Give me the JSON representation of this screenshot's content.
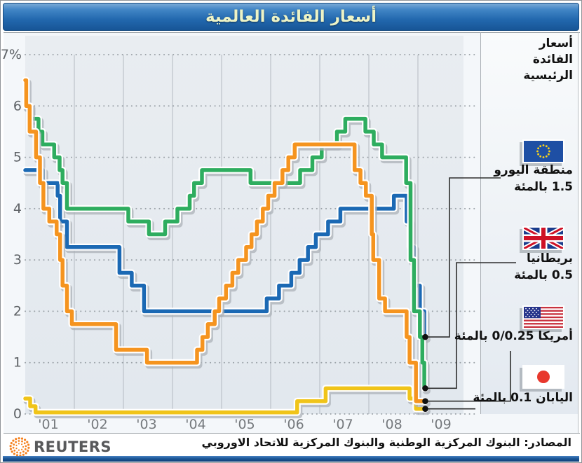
{
  "title": "أسعار الفائدة العالمية",
  "panel_heading": {
    "line1": "أسعار",
    "line2": "الفائدة",
    "line3": "الرئيسية"
  },
  "legend": {
    "euro": {
      "name": "منطقة اليورو",
      "rate": "1.5 بالمئة"
    },
    "britain": {
      "name": "بريطانيا",
      "rate": "0.5 بالمئة"
    },
    "america": {
      "name": "أمريكا 0/0.25 بالمئة"
    },
    "japan": {
      "name": "اليابان 0.1 بالمئة"
    }
  },
  "footer": {
    "brand": "REUTERS",
    "source": "المصادر: البنوك المركزية الوطنية والبنوك المركزية للاتحاد الاوروبي"
  },
  "colors": {
    "euro": "#1b69b4",
    "britain": "#2ead5f",
    "america": "#f5941f",
    "japan": "#f0c419",
    "title_bg": "#2268ae",
    "title_text": "#edf3c6",
    "reuters_orange": "#f58220",
    "plot_bg": "#e6ebf0",
    "grid": "#8f969c",
    "dot": "#111111"
  },
  "chart_data": {
    "type": "line",
    "subtype": "step",
    "title": "أسعار الفائدة العالمية",
    "ylabel": "%",
    "y_ticks": [
      "7%",
      "6",
      "5",
      "4",
      "3",
      "2",
      "1",
      "0"
    ],
    "x_ticks": [
      "'01",
      "'02",
      "'03",
      "'04",
      "'05",
      "'06",
      "'07",
      "'08",
      "'09"
    ],
    "x_range": [
      2001.0,
      2009.15
    ],
    "y_range": [
      0,
      7
    ],
    "grid": "horizontal-dotted, vertical-solid",
    "legend_position": "right",
    "series": [
      {
        "id": "japan",
        "label_ar": "اليابان",
        "color": "#f0c419",
        "end_value": 0.1,
        "points": [
          [
            2001.0,
            0.3
          ],
          [
            2001.1,
            0.15
          ],
          [
            2001.21,
            0.03
          ],
          [
            2006.54,
            0.25
          ],
          [
            2007.12,
            0.5
          ],
          [
            2008.83,
            0.3
          ],
          [
            2008.96,
            0.1
          ]
        ]
      },
      {
        "id": "euro",
        "label_ar": "منطقة اليورو",
        "color": "#1b69b4",
        "end_value": 1.5,
        "points": [
          [
            2001.0,
            4.75
          ],
          [
            2001.36,
            4.5
          ],
          [
            2001.66,
            4.25
          ],
          [
            2001.71,
            3.75
          ],
          [
            2001.85,
            3.25
          ],
          [
            2002.92,
            2.75
          ],
          [
            2003.17,
            2.5
          ],
          [
            2003.42,
            2.0
          ],
          [
            2005.92,
            2.25
          ],
          [
            2006.17,
            2.5
          ],
          [
            2006.42,
            2.75
          ],
          [
            2006.59,
            3.0
          ],
          [
            2006.76,
            3.25
          ],
          [
            2006.92,
            3.5
          ],
          [
            2007.17,
            3.75
          ],
          [
            2007.42,
            4.0
          ],
          [
            2008.51,
            4.25
          ],
          [
            2008.77,
            3.75
          ],
          [
            2008.84,
            3.25
          ],
          [
            2008.92,
            2.5
          ],
          [
            2009.04,
            2.0
          ],
          [
            2009.13,
            1.5
          ]
        ]
      },
      {
        "id": "britain",
        "label_ar": "بريطانيا",
        "color": "#2ead5f",
        "end_value": 0.5,
        "points": [
          [
            2001.0,
            6.0
          ],
          [
            2001.1,
            5.75
          ],
          [
            2001.27,
            5.5
          ],
          [
            2001.35,
            5.25
          ],
          [
            2001.59,
            5.0
          ],
          [
            2001.7,
            4.75
          ],
          [
            2001.76,
            4.5
          ],
          [
            2001.85,
            4.0
          ],
          [
            2003.1,
            3.75
          ],
          [
            2003.52,
            3.5
          ],
          [
            2003.85,
            3.75
          ],
          [
            2004.1,
            4.0
          ],
          [
            2004.35,
            4.25
          ],
          [
            2004.44,
            4.5
          ],
          [
            2004.6,
            4.75
          ],
          [
            2005.59,
            4.5
          ],
          [
            2006.6,
            4.75
          ],
          [
            2006.85,
            5.0
          ],
          [
            2007.04,
            5.25
          ],
          [
            2007.35,
            5.5
          ],
          [
            2007.52,
            5.75
          ],
          [
            2007.93,
            5.5
          ],
          [
            2008.1,
            5.25
          ],
          [
            2008.27,
            5.0
          ],
          [
            2008.76,
            4.5
          ],
          [
            2008.85,
            3.0
          ],
          [
            2008.92,
            2.0
          ],
          [
            2009.04,
            1.5
          ],
          [
            2009.09,
            1.0
          ],
          [
            2009.13,
            0.5
          ]
        ]
      },
      {
        "id": "america",
        "label_ar": "أمريكا",
        "color": "#f5941f",
        "end_value": 0.25,
        "points": [
          [
            2001.0,
            6.5
          ],
          [
            2001.02,
            6.0
          ],
          [
            2001.09,
            5.5
          ],
          [
            2001.22,
            5.0
          ],
          [
            2001.3,
            4.5
          ],
          [
            2001.37,
            4.0
          ],
          [
            2001.49,
            3.75
          ],
          [
            2001.64,
            3.5
          ],
          [
            2001.71,
            3.0
          ],
          [
            2001.76,
            2.5
          ],
          [
            2001.85,
            2.0
          ],
          [
            2001.95,
            1.75
          ],
          [
            2002.85,
            1.25
          ],
          [
            2003.48,
            1.0
          ],
          [
            2004.5,
            1.25
          ],
          [
            2004.61,
            1.5
          ],
          [
            2004.72,
            1.75
          ],
          [
            2004.86,
            2.0
          ],
          [
            2004.95,
            2.25
          ],
          [
            2005.09,
            2.5
          ],
          [
            2005.22,
            2.75
          ],
          [
            2005.34,
            3.0
          ],
          [
            2005.5,
            3.25
          ],
          [
            2005.61,
            3.5
          ],
          [
            2005.72,
            3.75
          ],
          [
            2005.84,
            4.0
          ],
          [
            2005.95,
            4.25
          ],
          [
            2006.08,
            4.5
          ],
          [
            2006.24,
            4.75
          ],
          [
            2006.36,
            5.0
          ],
          [
            2006.49,
            5.25
          ],
          [
            2007.71,
            4.75
          ],
          [
            2007.83,
            4.5
          ],
          [
            2007.94,
            4.25
          ],
          [
            2008.06,
            3.5
          ],
          [
            2008.09,
            3.0
          ],
          [
            2008.21,
            2.25
          ],
          [
            2008.33,
            2.0
          ],
          [
            2008.77,
            1.5
          ],
          [
            2008.83,
            1.0
          ],
          [
            2008.96,
            0.25
          ]
        ]
      }
    ]
  }
}
